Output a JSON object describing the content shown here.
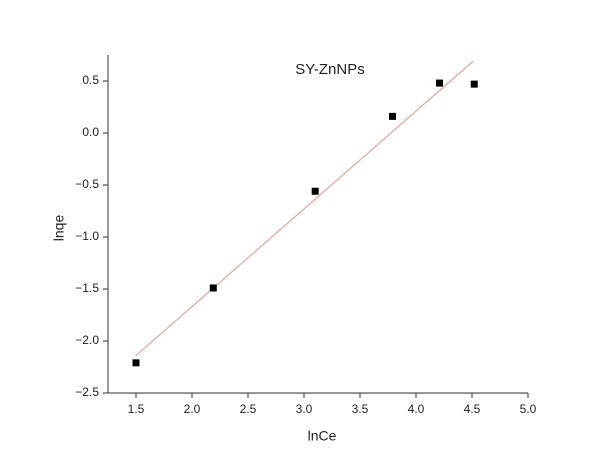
{
  "chart_data": {
    "type": "scatter",
    "title": "SY-ZnNPs",
    "x_label": "lnCe",
    "y_label": "lnqe",
    "x": [
      1.5,
      2.19,
      3.1,
      3.79,
      4.21,
      4.52
    ],
    "values": [
      -2.21,
      -1.49,
      -0.56,
      0.16,
      0.48,
      0.47
    ],
    "color": "#000000",
    "fit_line": {
      "x": [
        1.5,
        4.51
      ],
      "values": [
        -2.14,
        0.69
      ],
      "color": "#d9a8a0"
    },
    "xlim": [
      1.25,
      5.0
    ],
    "xticks": [
      1.5,
      {
        "value": 2,
        "label": "2.0"
      },
      2.5,
      {
        "value": 3,
        "label": "3.0"
      },
      3.5,
      {
        "value": 4,
        "label": "4.0"
      },
      4.5,
      {
        "value": 5,
        "label": "5.0"
      }
    ],
    "ylim": [
      -2.5,
      0.75
    ],
    "yticks": [
      {
        "value": -2.5,
        "label": "−2.5"
      },
      {
        "value": -2,
        "label": "−2.0"
      },
      {
        "value": -1.5,
        "label": "−1.5"
      },
      {
        "value": -1,
        "label": "−1.0"
      },
      {
        "value": -0.5,
        "label": "−0.5"
      },
      {
        "value": 0,
        "label": "0.0"
      },
      0.5
    ],
    "grid": false
  }
}
